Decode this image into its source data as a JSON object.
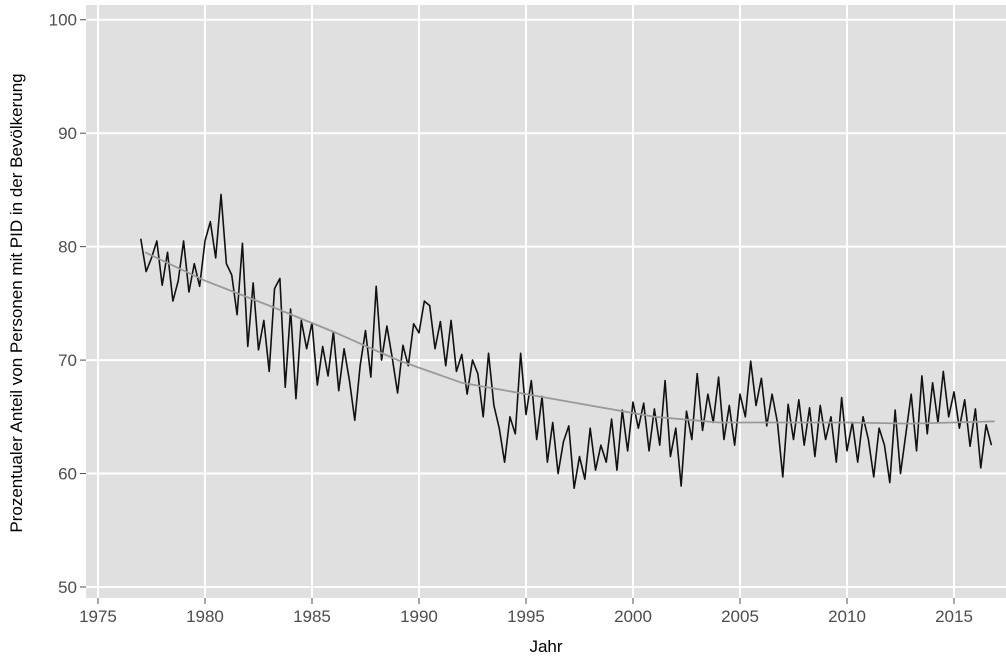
{
  "chart_data": {
    "type": "line",
    "xlabel": "Jahr",
    "ylabel": "Prozentualer Anteil von Personen mit PID in der Bevölkerung",
    "xlim": [
      1974.44,
      2017.43
    ],
    "ylim": [
      49.03,
      101.3
    ],
    "xticks": [
      1975,
      1980,
      1985,
      1990,
      1995,
      2000,
      2005,
      2010,
      2015
    ],
    "yticks": [
      50,
      60,
      70,
      80,
      90,
      100
    ],
    "grid": true,
    "background": "#e0e0e0",
    "series": [
      {
        "color": "#111111",
        "x": [
          1977,
          1977.25,
          1977.5,
          1977.75,
          1978,
          1978.25,
          1978.5,
          1978.75,
          1979,
          1979.25,
          1979.5,
          1979.75,
          1980,
          1980.25,
          1980.5,
          1980.75,
          1981,
          1981.25,
          1981.5,
          1981.75,
          1982,
          1982.25,
          1982.5,
          1982.75,
          1983,
          1983.25,
          1983.5,
          1983.75,
          1984,
          1984.25,
          1984.5,
          1984.75,
          1985,
          1985.25,
          1985.5,
          1985.75,
          1986,
          1986.25,
          1986.5,
          1986.75,
          1987,
          1987.25,
          1987.5,
          1987.75,
          1988,
          1988.25,
          1988.5,
          1988.75,
          1989,
          1989.25,
          1989.5,
          1989.75,
          1990,
          1990.25,
          1990.5,
          1990.75,
          1991,
          1991.25,
          1991.5,
          1991.75,
          1992,
          1992.25,
          1992.5,
          1992.75,
          1993,
          1993.25,
          1993.5,
          1993.75,
          1994,
          1994.25,
          1994.5,
          1994.75,
          1995,
          1995.25,
          1995.5,
          1995.75,
          1996,
          1996.25,
          1996.5,
          1996.75,
          1997,
          1997.25,
          1997.5,
          1997.75,
          1998,
          1998.25,
          1998.5,
          1998.75,
          1999,
          1999.25,
          1999.5,
          1999.75,
          2000,
          2000.25,
          2000.5,
          2000.75,
          2001,
          2001.25,
          2001.5,
          2001.75,
          2002,
          2002.25,
          2002.5,
          2002.75,
          2003,
          2003.25,
          2003.5,
          2003.75,
          2004,
          2004.25,
          2004.5,
          2004.75,
          2005,
          2005.25,
          2005.5,
          2005.75,
          2006,
          2006.25,
          2006.5,
          2006.75,
          2007,
          2007.25,
          2007.5,
          2007.75,
          2008,
          2008.25,
          2008.5,
          2008.75,
          2009,
          2009.25,
          2009.5,
          2009.75,
          2010,
          2010.25,
          2010.5,
          2010.75,
          2011,
          2011.25,
          2011.5,
          2011.75,
          2012,
          2012.25,
          2012.5,
          2012.75,
          2013,
          2013.25,
          2013.5,
          2013.75,
          2014,
          2014.25,
          2014.5,
          2014.75,
          2015,
          2015.25,
          2015.5,
          2015.75,
          2016,
          2016.25,
          2016.5,
          2016.75
        ],
        "values": [
          80.7,
          77.8,
          79.0,
          80.5,
          76.6,
          79.5,
          75.2,
          77.0,
          80.5,
          76.0,
          78.5,
          76.5,
          80.5,
          82.2,
          79.0,
          84.6,
          78.5,
          77.5,
          74.0,
          80.3,
          71.2,
          76.8,
          70.9,
          73.5,
          69.0,
          76.3,
          77.2,
          67.6,
          74.5,
          66.6,
          73.5,
          71.0,
          73.3,
          67.8,
          71.2,
          68.6,
          72.5,
          67.3,
          71.0,
          68.2,
          64.7,
          69.5,
          72.6,
          68.5,
          76.5,
          70.0,
          73.0,
          70.2,
          67.1,
          71.3,
          69.5,
          73.2,
          72.4,
          75.2,
          74.8,
          71.0,
          73.4,
          69.5,
          73.5,
          69.0,
          70.5,
          67.0,
          70.0,
          68.8,
          65.0,
          70.6,
          66.0,
          64.0,
          61.0,
          65.0,
          63.5,
          70.6,
          65.2,
          68.2,
          63.0,
          66.8,
          61.0,
          64.5,
          60.0,
          62.8,
          64.2,
          58.7,
          61.5,
          59.5,
          64.0,
          60.3,
          62.5,
          61.0,
          64.8,
          60.3,
          65.6,
          62.0,
          66.3,
          64.0,
          66.2,
          62.0,
          65.7,
          62.5,
          68.2,
          61.5,
          64.0,
          58.9,
          65.5,
          63.0,
          68.8,
          63.8,
          67.0,
          64.5,
          68.5,
          63.0,
          66.0,
          62.5,
          67.0,
          65.0,
          69.9,
          66.0,
          68.4,
          64.2,
          67.0,
          64.5,
          59.7,
          66.1,
          63.0,
          66.5,
          62.5,
          65.8,
          61.5,
          66.0,
          63.0,
          65.0,
          61.0,
          66.7,
          62.0,
          64.5,
          61.0,
          65.0,
          63.0,
          59.7,
          64.0,
          62.5,
          59.2,
          65.6,
          60.0,
          63.5,
          67.0,
          62.0,
          68.6,
          63.5,
          68.0,
          64.5,
          69.0,
          65.0,
          67.2,
          64.0,
          66.5,
          62.4,
          65.7,
          60.5,
          64.3,
          62.5
        ]
      },
      {
        "color": "#999999",
        "x": [
          1977.2,
          1980,
          1983,
          1986,
          1989,
          1992,
          1995,
          1998,
          2001,
          2004,
          2007,
          2010,
          2013,
          2016.9
        ],
        "values": [
          79.5,
          77.0,
          74.8,
          72.5,
          70.0,
          68.0,
          67.0,
          66.0,
          65.0,
          64.5,
          64.5,
          64.5,
          64.4,
          64.6
        ]
      }
    ]
  }
}
